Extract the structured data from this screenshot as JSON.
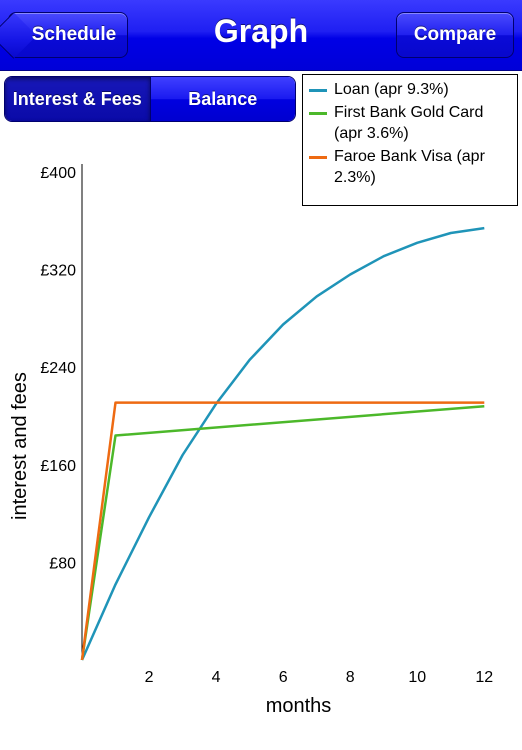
{
  "navbar": {
    "title": "Graph",
    "back_label": "Schedule",
    "compare_label": "Compare"
  },
  "segmented": {
    "options": [
      "Interest & Fees",
      "Balance"
    ],
    "selected": "Interest & Fees"
  },
  "colors": {
    "nav_blue": "#0000e6",
    "loan": "#1f94b8",
    "first_bank": "#4cb82a",
    "faroe_bank": "#ee6a12"
  },
  "chart_data": {
    "type": "line",
    "title": "",
    "xlabel": "months",
    "ylabel": "interest and fees",
    "xlim": [
      0,
      12.2
    ],
    "ylim": [
      0,
      400
    ],
    "x_ticks": [
      2,
      4,
      6,
      8,
      10,
      12
    ],
    "y_ticks": [
      80,
      160,
      240,
      320,
      400
    ],
    "y_tick_labels": [
      "£80",
      "£160",
      "£240",
      "£320",
      "£400"
    ],
    "grid": false,
    "legend_position": "top-right",
    "series": [
      {
        "name": "Loan (apr 9.3%)",
        "color": "#1f94b8",
        "x": [
          0,
          1,
          2,
          3,
          4,
          5,
          6,
          7,
          8,
          9,
          10,
          11,
          12
        ],
        "y": [
          0,
          62,
          117,
          168,
          210,
          246,
          275,
          298,
          316,
          331,
          342,
          350,
          354
        ]
      },
      {
        "name": "First Bank Gold Card (apr 3.6%)",
        "color": "#4cb82a",
        "x": [
          0,
          1,
          12
        ],
        "y": [
          0,
          184,
          208
        ]
      },
      {
        "name": "Faroe Bank Visa (apr 2.3%)",
        "color": "#ee6a12",
        "x": [
          0,
          1,
          12
        ],
        "y": [
          0,
          211,
          211
        ]
      }
    ]
  }
}
